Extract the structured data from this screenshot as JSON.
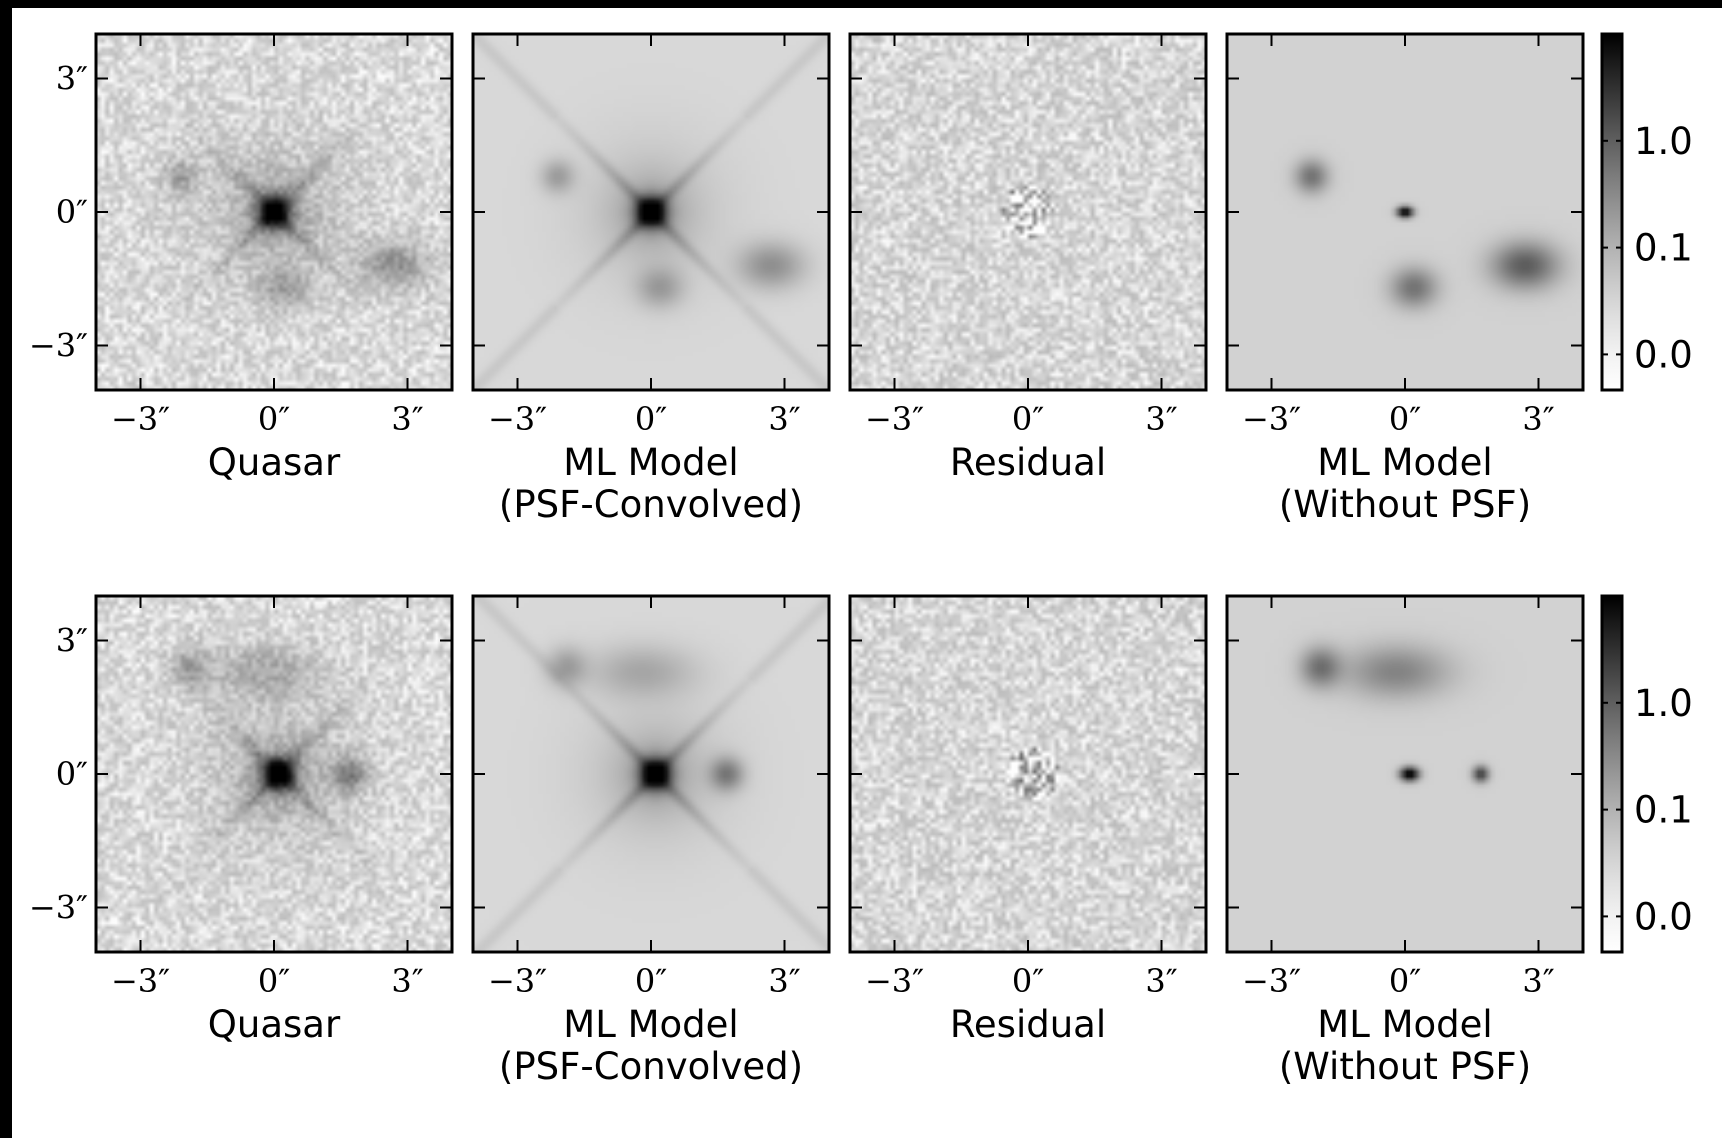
{
  "figure": {
    "rows": [
      {
        "panels": [
          {
            "caption": [
              "Quasar"
            ],
            "kind": "data"
          },
          {
            "caption": [
              "ML Model",
              "(PSF-Convolved)"
            ],
            "kind": "model_conv"
          },
          {
            "caption": [
              "Residual"
            ],
            "kind": "residual"
          },
          {
            "caption": [
              "ML Model",
              "(Without PSF)"
            ],
            "kind": "model_nopsf"
          }
        ],
        "sources": [
          {
            "x": -2.1,
            "y": 0.8,
            "amp": 0.35,
            "sx": 0.25,
            "sy": 0.25
          },
          {
            "x": 0.0,
            "y": 0.0,
            "amp": 1.0,
            "sx": 0.12,
            "sy": 0.08,
            "point": true
          },
          {
            "x": 0.2,
            "y": -1.7,
            "amp": 0.35,
            "sx": 0.35,
            "sy": 0.3
          },
          {
            "x": 2.7,
            "y": -1.2,
            "amp": 0.45,
            "sx": 0.5,
            "sy": 0.35
          }
        ]
      },
      {
        "panels": [
          {
            "caption": [
              "Quasar"
            ],
            "kind": "data"
          },
          {
            "caption": [
              "ML Model",
              "(PSF-Convolved)"
            ],
            "kind": "model_conv"
          },
          {
            "caption": [
              "Residual"
            ],
            "kind": "residual"
          },
          {
            "caption": [
              "ML Model",
              "(Without PSF)"
            ],
            "kind": "model_nopsf"
          }
        ],
        "sources": [
          {
            "x": -1.9,
            "y": 2.4,
            "amp": 0.35,
            "sx": 0.3,
            "sy": 0.3
          },
          {
            "x": -0.2,
            "y": 2.3,
            "amp": 0.28,
            "sx": 0.8,
            "sy": 0.4
          },
          {
            "x": 0.1,
            "y": 0.0,
            "amp": 1.0,
            "sx": 0.14,
            "sy": 0.1,
            "point": true
          },
          {
            "x": 1.7,
            "y": 0.0,
            "amp": 0.6,
            "sx": 0.12,
            "sy": 0.12,
            "point": true
          }
        ]
      }
    ],
    "axis": {
      "xtick_values": [
        -3,
        0,
        3
      ],
      "xtick_labels": [
        "−3″",
        "0″",
        "3″"
      ],
      "ytick_values": [
        3,
        0,
        -3
      ],
      "ytick_labels": [
        "3″",
        "0″",
        "−3″"
      ],
      "xlim": [
        -4,
        4
      ],
      "ylim": [
        -4,
        4
      ]
    },
    "colorbar": {
      "tick_labels": [
        "1.0",
        "0.1",
        "0.0"
      ],
      "tick_fractions": [
        0.7,
        0.4,
        0.1
      ],
      "colormap": "grayscale (white → black)"
    },
    "colors": {
      "frame_color": "#000000",
      "background_outer": "#000000",
      "figure_background": "#ffffff"
    }
  }
}
